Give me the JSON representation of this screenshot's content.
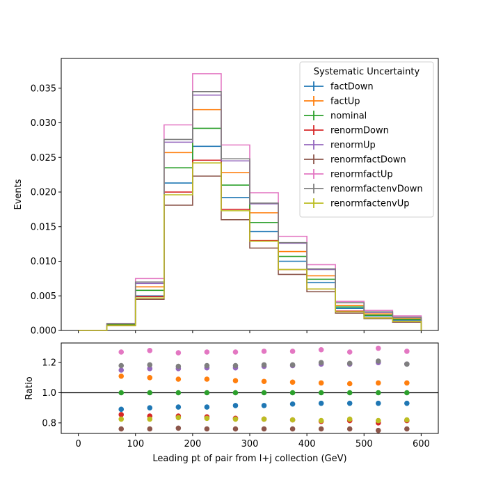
{
  "chart_data": {
    "type": "step-histogram-with-ratio",
    "xlabel": "Leading pt of pair from l+j collection (GeV)",
    "top": {
      "ylabel": "Events",
      "ylim": [
        0,
        0.0393
      ],
      "yticks": [
        "0.000",
        "0.005",
        "0.010",
        "0.015",
        "0.020",
        "0.025",
        "0.030",
        "0.035"
      ],
      "ytick_values": [
        0,
        0.005,
        0.01,
        0.015,
        0.02,
        0.025,
        0.03,
        0.035
      ]
    },
    "bottom": {
      "ylabel": "Ratio",
      "ylim": [
        0.73,
        1.33
      ],
      "yticks": [
        "0.8",
        "1.0",
        "1.2"
      ],
      "ytick_values": [
        0.8,
        1.0,
        1.2
      ],
      "reference_line": 1.0
    },
    "xlim": [
      -30,
      630
    ],
    "xticks": [
      "0",
      "100",
      "200",
      "300",
      "400",
      "500",
      "600"
    ],
    "xtick_values": [
      0,
      100,
      200,
      300,
      400,
      500,
      600
    ],
    "bin_edges": [
      0,
      50,
      100,
      150,
      200,
      250,
      300,
      350,
      400,
      450,
      500,
      550,
      600
    ],
    "bin_centers": [
      75,
      125,
      175,
      225,
      275,
      325,
      375,
      425,
      475,
      525,
      575
    ],
    "legend": {
      "title": "Systematic Uncertainty",
      "placement": "top-right"
    },
    "series": [
      {
        "name": "factDown",
        "color": "#1f77b4",
        "values": [
          0,
          0.0008,
          0.005,
          0.0213,
          0.0266,
          0.0192,
          0.0143,
          0.01,
          0.0069,
          0.0032,
          0.0021,
          0.0015
        ],
        "ratio": [
          0.89,
          0.9,
          0.905,
          0.905,
          0.915,
          0.915,
          0.925,
          0.93,
          0.93,
          0.93,
          0.93
        ]
      },
      {
        "name": "factUp",
        "color": "#ff7f0e",
        "values": [
          0,
          0.0009,
          0.0063,
          0.0257,
          0.0319,
          0.0228,
          0.017,
          0.0114,
          0.0079,
          0.0036,
          0.0024,
          0.0017
        ],
        "ratio": [
          1.11,
          1.1,
          1.09,
          1.09,
          1.08,
          1.075,
          1.07,
          1.065,
          1.06,
          1.065,
          1.065
        ]
      },
      {
        "name": "nominal",
        "color": "#2ca02c",
        "values": [
          0,
          0.0008,
          0.0058,
          0.0235,
          0.0292,
          0.021,
          0.0156,
          0.0107,
          0.0074,
          0.0034,
          0.0022,
          0.0016
        ],
        "ratio": [
          1.0,
          1.0,
          1.0,
          1.0,
          1.0,
          1.0,
          1.0,
          1.0,
          1.0,
          1.0,
          1.0
        ]
      },
      {
        "name": "renormDown",
        "color": "#d62728",
        "values": [
          0,
          0.0007,
          0.0049,
          0.02,
          0.0246,
          0.0175,
          0.013,
          0.0088,
          0.006,
          0.0028,
          0.0018,
          0.0013
        ],
        "ratio": [
          0.855,
          0.845,
          0.845,
          0.84,
          0.83,
          0.825,
          0.82,
          0.81,
          0.815,
          0.8,
          0.815
        ]
      },
      {
        "name": "renormUp",
        "color": "#9467bd",
        "values": [
          0,
          0.001,
          0.0068,
          0.0272,
          0.034,
          0.0245,
          0.0183,
          0.0126,
          0.0088,
          0.004,
          0.0026,
          0.0019
        ],
        "ratio": [
          1.15,
          1.16,
          1.16,
          1.165,
          1.165,
          1.175,
          1.18,
          1.19,
          1.19,
          1.2,
          1.19
        ]
      },
      {
        "name": "renormfactDown",
        "color": "#8c564b",
        "values": [
          0,
          0.0007,
          0.0045,
          0.0181,
          0.0223,
          0.016,
          0.0119,
          0.0081,
          0.0056,
          0.0025,
          0.0017,
          0.0012
        ],
        "ratio": [
          0.76,
          0.76,
          0.765,
          0.76,
          0.76,
          0.76,
          0.76,
          0.76,
          0.76,
          0.75,
          0.76
        ]
      },
      {
        "name": "renormfactUp",
        "color": "#e377c2",
        "values": [
          0,
          0.001,
          0.0075,
          0.0297,
          0.0371,
          0.0268,
          0.0199,
          0.0136,
          0.0095,
          0.0042,
          0.0029,
          0.0021
        ],
        "ratio": [
          1.27,
          1.28,
          1.265,
          1.27,
          1.27,
          1.275,
          1.275,
          1.285,
          1.27,
          1.295,
          1.275
        ]
      },
      {
        "name": "renormfactenvDown",
        "color": "#7f7f7f",
        "values": [
          0,
          0.001,
          0.007,
          0.0276,
          0.0345,
          0.0248,
          0.0184,
          0.0127,
          0.0089,
          0.004,
          0.0027,
          0.0019
        ],
        "ratio": [
          1.18,
          1.185,
          1.175,
          1.18,
          1.18,
          1.185,
          1.185,
          1.2,
          1.195,
          1.21,
          1.19
        ]
      },
      {
        "name": "renormfactenvUp",
        "color": "#bcbd22",
        "values": [
          0,
          0.0007,
          0.0047,
          0.0196,
          0.0242,
          0.0173,
          0.0129,
          0.0088,
          0.006,
          0.0027,
          0.0018,
          0.0013
        ],
        "ratio": [
          0.825,
          0.825,
          0.835,
          0.83,
          0.825,
          0.825,
          0.82,
          0.815,
          0.825,
          0.815,
          0.82
        ]
      }
    ]
  }
}
